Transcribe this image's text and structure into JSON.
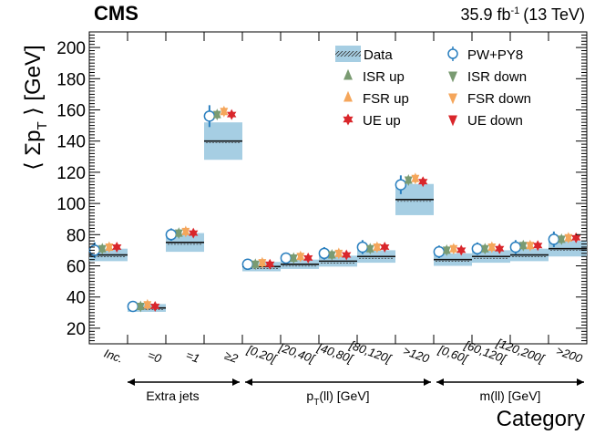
{
  "header": {
    "experiment": "CMS",
    "lumi_value": "35.9 fb",
    "lumi_exp": "-1",
    "energy": "(13 TeV)"
  },
  "chart_data": {
    "type": "scatter",
    "title": "",
    "xlabel": "Category",
    "ylabel": "⟨ Σp_T ⟩ [GeV]",
    "ylim": [
      10,
      210
    ],
    "yticks": [
      20,
      40,
      60,
      80,
      100,
      120,
      140,
      160,
      180,
      200
    ],
    "categories": [
      "Inc.",
      "=0",
      "=1",
      "≥2",
      "[0,20[",
      "[20,40[",
      "[40,80[",
      "[80,120[",
      ">120",
      "[0,60[",
      "[60,120[",
      "[120,200[",
      ">200"
    ],
    "groups": [
      {
        "label": "Extra jets",
        "categories": [
          "Inc.",
          "=0",
          "=1",
          "≥2"
        ]
      },
      {
        "label_main": "p",
        "label_sub": "T",
        "label_rest": "(ll) [GeV]",
        "categories": [
          "[0,20[",
          "[20,40[",
          "[40,80[",
          "[80,120[",
          ">120"
        ]
      },
      {
        "label": "m(ll) [GeV]",
        "categories": [
          "[0,60[",
          "[60,120[",
          "[120,200[",
          ">200"
        ]
      }
    ],
    "data": {
      "name": "Data",
      "values": [
        67,
        33,
        75,
        140,
        59.5,
        61,
        63,
        66,
        102.5,
        64,
        66,
        67,
        71
      ],
      "uncertainty": [
        4,
        2.5,
        6,
        12,
        3,
        3,
        3.5,
        4,
        10,
        4,
        4,
        4,
        5
      ]
    },
    "series": [
      {
        "name": "PW+PY8",
        "marker": "open-circle",
        "color": "#2a7fbf",
        "values": [
          70,
          34,
          80,
          156,
          61,
          65,
          68,
          72,
          112,
          69,
          71,
          72,
          77
        ],
        "errors": [
          5,
          3,
          4,
          7,
          3,
          3.5,
          4,
          4.5,
          6,
          4,
          4,
          4.5,
          5
        ]
      },
      {
        "name": "ISR up",
        "marker": "triangle-up",
        "color": "#7a9b72",
        "values": [
          71,
          34,
          81,
          157,
          61,
          65,
          67,
          71,
          115,
          70,
          71,
          73,
          77
        ]
      },
      {
        "name": "ISR down",
        "marker": "triangle-down",
        "color": "#7a9b72",
        "values": [
          71,
          34,
          81,
          157,
          61,
          65,
          67,
          71,
          115,
          70,
          71,
          73,
          77
        ]
      },
      {
        "name": "FSR up",
        "marker": "triangle-up",
        "color": "#f5a65b",
        "values": [
          72,
          35,
          82,
          159,
          62,
          66,
          68,
          72,
          116,
          71,
          72,
          73,
          78
        ]
      },
      {
        "name": "FSR down",
        "marker": "triangle-down",
        "color": "#f5a65b",
        "values": [
          72,
          35,
          82,
          159,
          62,
          66,
          68,
          72,
          116,
          71,
          72,
          73,
          78
        ]
      },
      {
        "name": "UE up",
        "marker": "triangle-up",
        "color": "#d9262b",
        "values": [
          72,
          34,
          81,
          157,
          61,
          65,
          67,
          72,
          114,
          70,
          71,
          73,
          78
        ]
      },
      {
        "name": "UE down",
        "marker": "triangle-down",
        "color": "#d9262b",
        "values": [
          72,
          34,
          81,
          157,
          61,
          65,
          67,
          72,
          114,
          70,
          71,
          73,
          78
        ]
      }
    ],
    "legend": {
      "placement": "top-right",
      "entries": [
        "Data",
        "PW+PY8",
        "ISR up",
        "ISR down",
        "FSR up",
        "FSR down",
        "UE up",
        "UE down"
      ]
    }
  }
}
